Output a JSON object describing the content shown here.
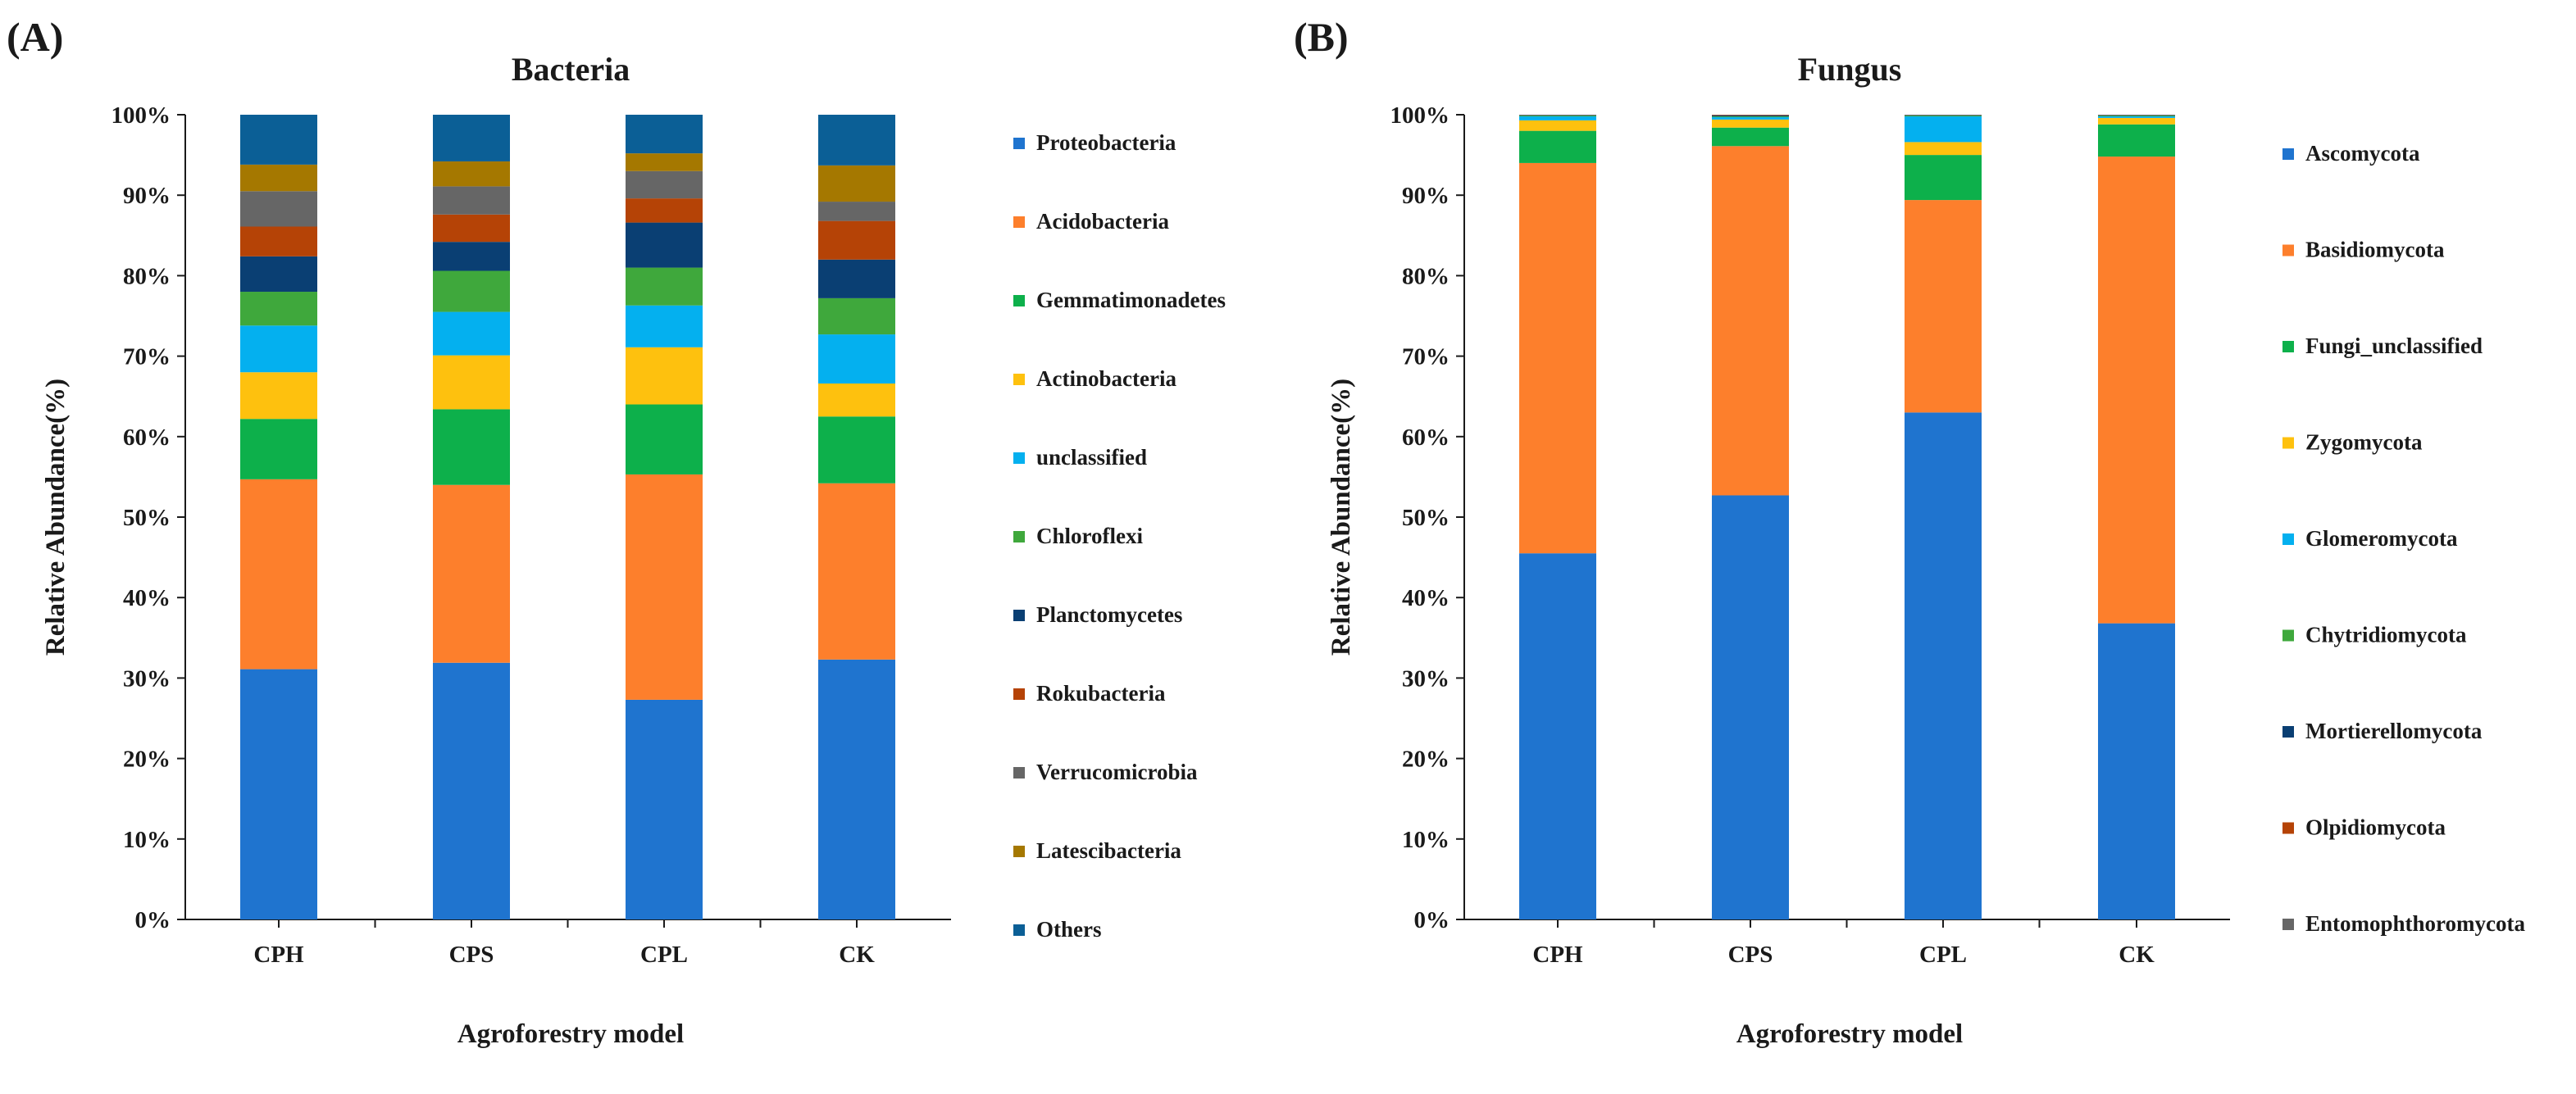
{
  "panels": [
    {
      "panel_label": "(A)",
      "chart_data": {
        "type": "bar",
        "stacked": true,
        "title": "Bacteria",
        "xlabel": "Agroforestry model",
        "ylabel": "Relative Abundance(%)",
        "ylim": [
          0,
          100
        ],
        "yticks": [
          "0%",
          "10%",
          "20%",
          "30%",
          "40%",
          "50%",
          "60%",
          "70%",
          "80%",
          "90%",
          "100%"
        ],
        "categories": [
          "CPH",
          "CPS",
          "CPL",
          "CK"
        ],
        "legend_position": "right",
        "series": [
          {
            "name": "Proteobacteria",
            "color": "#1f74cf",
            "values": [
              31.1,
              31.9,
              27.3,
              32.3
            ]
          },
          {
            "name": "Acidobacteria",
            "color": "#fd7f2c",
            "values": [
              23.6,
              22.1,
              28.0,
              21.9
            ]
          },
          {
            "name": "Gemmatimonadetes",
            "color": "#0db04b",
            "values": [
              7.5,
              9.4,
              8.7,
              8.3
            ]
          },
          {
            "name": "Actinobacteria",
            "color": "#fec10e",
            "values": [
              5.8,
              6.7,
              7.1,
              4.1
            ]
          },
          {
            "name": "unclassified",
            "color": "#04b0ef",
            "values": [
              5.8,
              5.4,
              5.2,
              6.1
            ]
          },
          {
            "name": "Chloroflexi",
            "color": "#3fa83c",
            "values": [
              4.2,
              5.1,
              4.7,
              4.5
            ]
          },
          {
            "name": "Planctomycetes",
            "color": "#0a3f73",
            "values": [
              4.4,
              3.6,
              5.6,
              4.8
            ]
          },
          {
            "name": "Rokubacteria",
            "color": "#b54306",
            "values": [
              3.7,
              3.4,
              3.0,
              4.8
            ]
          },
          {
            "name": "Verrucomicrobia",
            "color": "#666666",
            "values": [
              4.4,
              3.5,
              3.4,
              2.4
            ]
          },
          {
            "name": "Latescibacteria",
            "color": "#a57800",
            "values": [
              3.3,
              3.1,
              2.2,
              4.5
            ]
          },
          {
            "name": "Others",
            "color": "#0b5f96",
            "values": [
              6.2,
              5.8,
              4.8,
              6.3
            ]
          }
        ]
      }
    },
    {
      "panel_label": "(B)",
      "chart_data": {
        "type": "bar",
        "stacked": true,
        "title": "Fungus",
        "xlabel": "Agroforestry model",
        "ylabel": "Relative Abundance(%)",
        "ylim": [
          0,
          100
        ],
        "yticks": [
          "0%",
          "10%",
          "20%",
          "30%",
          "40%",
          "50%",
          "60%",
          "70%",
          "80%",
          "90%",
          "100%"
        ],
        "categories": [
          "CPH",
          "CPS",
          "CPL",
          "CK"
        ],
        "legend_position": "right",
        "series": [
          {
            "name": "Ascomycota",
            "color": "#1f74cf",
            "values": [
              45.5,
              52.7,
              63.0,
              36.8
            ]
          },
          {
            "name": "Basidiomycota",
            "color": "#fd7f2c",
            "values": [
              48.5,
              43.4,
              26.4,
              58.0
            ]
          },
          {
            "name": "Fungi_unclassified",
            "color": "#0db04b",
            "values": [
              4.0,
              2.3,
              5.6,
              4.0
            ]
          },
          {
            "name": "Zygomycota",
            "color": "#fec10e",
            "values": [
              1.3,
              1.0,
              1.6,
              0.8
            ]
          },
          {
            "name": "Glomeromycota",
            "color": "#04b0ef",
            "values": [
              0.5,
              0.3,
              3.2,
              0.2
            ]
          },
          {
            "name": "Chytridiomycota",
            "color": "#3fa83c",
            "values": [
              0.1,
              0.1,
              0.1,
              0.1
            ]
          },
          {
            "name": "Mortierellomycota",
            "color": "#0a3f73",
            "values": [
              0.05,
              0.1,
              0.05,
              0.05
            ]
          },
          {
            "name": "Olpidiomycota",
            "color": "#b54306",
            "values": [
              0.03,
              0.05,
              0.03,
              0.03
            ]
          },
          {
            "name": "Entomophthoromycota",
            "color": "#666666",
            "values": [
              0.02,
              0.05,
              0.02,
              0.02
            ]
          }
        ]
      }
    }
  ]
}
